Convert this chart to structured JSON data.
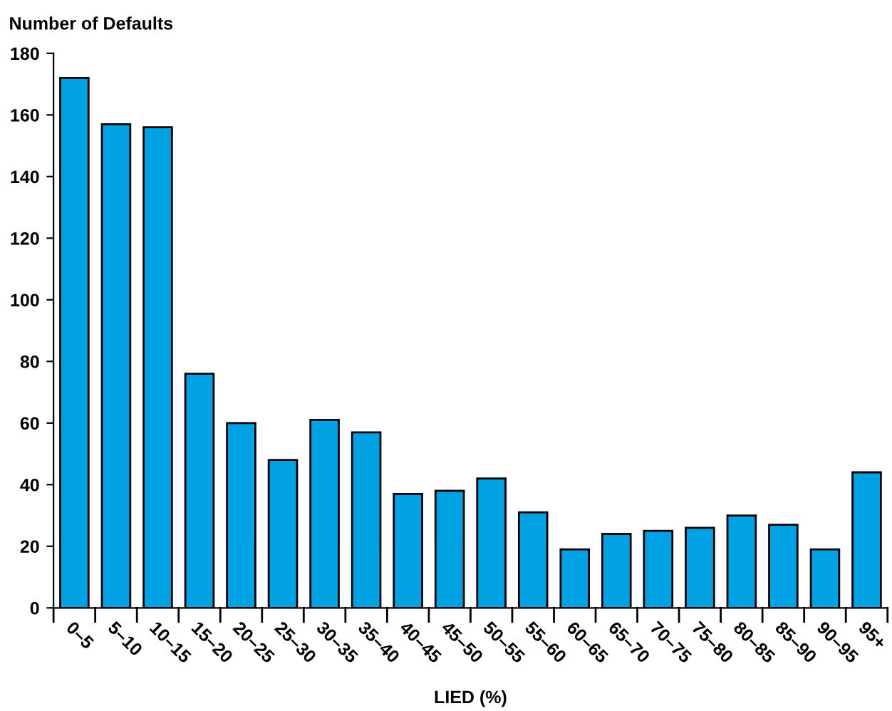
{
  "chart_data": {
    "type": "bar",
    "ylabel": "Number of Defaults",
    "xlabel": "LIED (%)",
    "categories": [
      "0–5",
      "5–10",
      "10–15",
      "15–20",
      "20–25",
      "25–30",
      "30–35",
      "35–40",
      "40–45",
      "45–50",
      "50–55",
      "55–60",
      "60–65",
      "65–70",
      "70–75",
      "75–80",
      "80–85",
      "85–90",
      "90–95",
      "95+"
    ],
    "values": [
      172,
      157,
      156,
      76,
      60,
      48,
      61,
      57,
      37,
      38,
      42,
      31,
      19,
      24,
      25,
      26,
      30,
      27,
      19,
      44
    ],
    "color": "#00a2e3",
    "ylim": [
      0,
      180
    ],
    "yticks": [
      0,
      20,
      40,
      60,
      80,
      100,
      120,
      140,
      160,
      180
    ],
    "grid": false
  }
}
